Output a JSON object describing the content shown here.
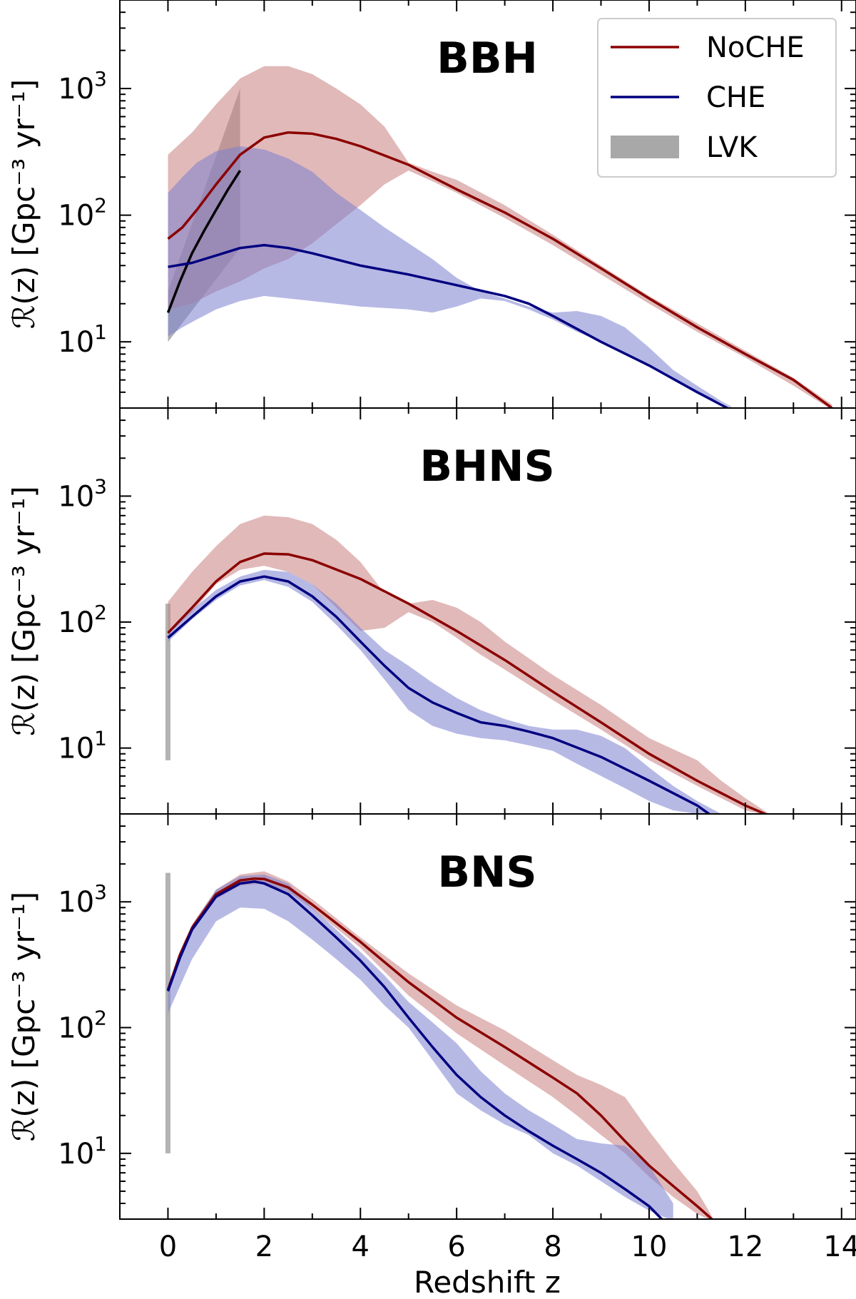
{
  "chart_data": {
    "type": "line",
    "xlabel": "Redshift z",
    "x_ticks": [
      "0",
      "2",
      "4",
      "6",
      "8",
      "10",
      "12",
      "14"
    ],
    "xlim": [
      -1,
      14.3
    ],
    "y_scale": "log",
    "ylim": [
      3,
      5000
    ],
    "ylabel": "ℛ(z) [Gpc⁻³ yr⁻¹]",
    "y_tick_base": "10",
    "y_tick_exponents": [
      "1",
      "2",
      "3"
    ],
    "legend": {
      "placement": "top-right",
      "entries": [
        {
          "label": "NoCHE",
          "color": "#8b0000",
          "kind": "line"
        },
        {
          "label": "CHE",
          "color": "#000080",
          "kind": "line"
        },
        {
          "label": "LVK",
          "color": "#a8a8a8",
          "kind": "band"
        }
      ]
    },
    "colors": {
      "noche_line": "#8b0000",
      "noche_band": "#c88080",
      "che_line": "#000080",
      "che_band": "#7b7fd0",
      "lvk": "#999999"
    },
    "panels": [
      {
        "title": "BBH",
        "series": [
          {
            "name": "NoCHE",
            "x": [
              0,
              0.3,
              0.6,
              1.0,
              1.5,
              2.0,
              2.5,
              3.0,
              3.5,
              4.0,
              5.0,
              6.0,
              7.0,
              8.0,
              9.0,
              10.0,
              11.0,
              12.0,
              13.0,
              13.8
            ],
            "y": [
              65,
              80,
              110,
              175,
              300,
              410,
              450,
              440,
              400,
              350,
              250,
              160,
              105,
              65,
              38,
              22,
              13,
              8,
              5,
              3
            ],
            "band_x": [
              0,
              0.5,
              1.0,
              1.5,
              2.0,
              2.5,
              3.0,
              3.5,
              4.0,
              4.5,
              5.0,
              5.5,
              6.0,
              7.0,
              8.0,
              9.0,
              10.0,
              11.0,
              12.0,
              13.0,
              13.8
            ],
            "band_low": [
              18,
              20,
              25,
              30,
              38,
              45,
              60,
              85,
              120,
              175,
              225,
              185,
              150,
              95,
              58,
              34,
              20,
              12,
              7.5,
              4.5,
              2.9
            ],
            "band_high": [
              300,
              450,
              750,
              1200,
              1500,
              1500,
              1300,
              1000,
              750,
              500,
              260,
              220,
              190,
              120,
              70,
              40,
              23,
              14,
              8.5,
              5.2,
              3.2
            ]
          },
          {
            "name": "CHE",
            "x": [
              0,
              0.5,
              1.0,
              1.5,
              2.0,
              2.5,
              3.0,
              4.0,
              5.0,
              6.0,
              7.0,
              7.5,
              8.0,
              9.0,
              10.0,
              11.0,
              11.7
            ],
            "y": [
              39,
              42,
              48,
              55,
              58,
              55,
              50,
              40,
              34,
              28,
              23,
              20,
              16,
              10,
              6.5,
              4,
              2.9
            ],
            "band_x": [
              0,
              0.3,
              0.6,
              1.0,
              1.5,
              2.0,
              2.5,
              3.0,
              3.5,
              4.0,
              4.5,
              5.0,
              5.5,
              6.0,
              6.5,
              7.0,
              7.5,
              8.0,
              8.5,
              9.0,
              9.5,
              10.0,
              10.5,
              11.0,
              11.5,
              11.7
            ],
            "band_low": [
              11,
              13,
              15,
              18,
              21,
              23,
              22,
              21,
              20,
              19,
              18.5,
              18,
              17,
              19,
              22,
              21,
              18,
              15,
              12,
              10,
              8,
              6.5,
              5,
              4,
              3.3,
              3
            ],
            "band_high": [
              150,
              200,
              260,
              320,
              350,
              330,
              280,
              220,
              150,
              110,
              80,
              60,
              45,
              32,
              25,
              22,
              19,
              17,
              17.5,
              16,
              13,
              9,
              6,
              4.5,
              3.4,
              3.1
            ]
          }
        ],
        "lvk": {
          "band_x": [
            0,
            1.5
          ],
          "band_low": [
            10,
            55
          ],
          "band_high": [
            25,
            1000
          ],
          "median_x": [
            0,
            0.25,
            0.5,
            0.75,
            1.0,
            1.25,
            1.5
          ],
          "median_y": [
            17,
            30,
            50,
            75,
            110,
            160,
            225
          ]
        }
      },
      {
        "title": "BHNS",
        "series": [
          {
            "name": "NoCHE",
            "x": [
              0,
              0.5,
              1.0,
              1.5,
              2.0,
              2.5,
              3.0,
              4.0,
              5.0,
              6.0,
              7.0,
              8.0,
              9.0,
              10.0,
              11.0,
              12.0,
              12.5
            ],
            "y": [
              82,
              130,
              210,
              300,
              350,
              345,
              310,
              220,
              140,
              85,
              50,
              28,
              16,
              9,
              5.5,
              3.5,
              2.9
            ],
            "band_x": [
              0,
              0.5,
              1.0,
              1.5,
              2.0,
              2.5,
              3.0,
              3.5,
              4.0,
              4.5,
              5.0,
              5.5,
              6.0,
              6.5,
              7.0,
              8.0,
              9.0,
              10.0,
              11.0,
              11.5,
              12.0,
              12.5
            ],
            "band_low": [
              80,
              120,
              200,
              260,
              280,
              250,
              200,
              130,
              85,
              90,
              120,
              100,
              75,
              55,
              42,
              24,
              14,
              8,
              5,
              4,
              3.2,
              2.9
            ],
            "band_high": [
              145,
              250,
              400,
              600,
              700,
              680,
              600,
              450,
              300,
              170,
              140,
              150,
              130,
              100,
              70,
              38,
              22,
              12,
              8,
              5.5,
              4,
              3
            ]
          },
          {
            "name": "CHE",
            "x": [
              0,
              0.5,
              1.0,
              1.5,
              2.0,
              2.5,
              3.0,
              3.5,
              4.0,
              4.5,
              5.0,
              5.5,
              6.0,
              6.5,
              7.0,
              7.5,
              8.0,
              9.0,
              10.0,
              11.0,
              11.3
            ],
            "y": [
              75,
              110,
              160,
              210,
              230,
              210,
              160,
              110,
              70,
              45,
              30,
              23,
              19,
              16,
              15,
              13.5,
              12,
              8.5,
              5.5,
              3.5,
              2.9
            ],
            "band_x": [
              0,
              0.5,
              1.0,
              1.5,
              2.0,
              2.5,
              3.0,
              3.5,
              4.0,
              4.5,
              5.0,
              5.5,
              6.0,
              6.5,
              7.0,
              7.5,
              8.0,
              8.5,
              9.0,
              9.5,
              10.0,
              10.5,
              11.0,
              11.5
            ],
            "band_low": [
              70,
              105,
              150,
              195,
              215,
              190,
              145,
              95,
              60,
              35,
              20,
              15,
              13,
              12,
              11.5,
              10.5,
              9.5,
              7.5,
              6,
              4.8,
              3.8,
              3.2,
              3,
              2.9
            ],
            "band_high": [
              80,
              125,
              180,
              230,
              260,
              250,
              200,
              140,
              90,
              60,
              45,
              33,
              25,
              20,
              17,
              15,
              14,
              14,
              12.5,
              10,
              7,
              5,
              3.8,
              3
            ]
          }
        ],
        "lvk": {
          "band_x": [
            0,
            0.1
          ],
          "band_low": [
            8,
            8
          ],
          "band_high": [
            140,
            140
          ]
        }
      },
      {
        "title": "BNS",
        "series": [
          {
            "name": "NoCHE",
            "x": [
              0,
              0.25,
              0.5,
              1.0,
              1.5,
              1.8,
              2.0,
              2.5,
              3.0,
              4.0,
              5.0,
              6.0,
              7.0,
              8.0,
              8.5,
              9.0,
              9.5,
              10.0,
              10.5,
              11.0,
              11.35
            ],
            "y": [
              200,
              380,
              620,
              1150,
              1480,
              1530,
              1520,
              1300,
              950,
              480,
              230,
              120,
              70,
              40,
              30,
              20,
              12.5,
              8,
              5.5,
              3.8,
              2.9
            ],
            "band_x": [
              0,
              0.5,
              1.0,
              1.5,
              2.0,
              2.5,
              3.0,
              4.0,
              5.0,
              6.0,
              7.0,
              8.0,
              8.5,
              9.0,
              9.5,
              10.0,
              10.5,
              11.0,
              11.3
            ],
            "band_low": [
              190,
              580,
              1050,
              1350,
              1400,
              1200,
              880,
              430,
              180,
              90,
              50,
              28,
              20,
              14,
              10,
              6.5,
              4.5,
              3.3,
              2.9
            ],
            "band_high": [
              210,
              660,
              1250,
              1650,
              1750,
              1450,
              1050,
              520,
              270,
              150,
              95,
              55,
              42,
              35,
              28,
              15,
              8.5,
              5,
              3.2
            ]
          },
          {
            "name": "CHE",
            "x": [
              0,
              0.25,
              0.5,
              1.0,
              1.5,
              1.8,
              2.0,
              2.5,
              3.0,
              3.5,
              4.0,
              4.5,
              5.0,
              5.5,
              6.0,
              6.5,
              7.0,
              7.5,
              8.0,
              8.5,
              9.0,
              9.5,
              10.0,
              10.3
            ],
            "y": [
              195,
              360,
              600,
              1100,
              1400,
              1450,
              1400,
              1150,
              780,
              520,
              340,
              210,
              120,
              70,
              42,
              28,
              20,
              15,
              11.5,
              9,
              7,
              5.2,
              3.8,
              2.9
            ],
            "band_x": [
              0,
              0.5,
              1.0,
              1.5,
              2.0,
              2.5,
              3.0,
              3.5,
              4.0,
              4.5,
              5.0,
              5.5,
              6.0,
              6.5,
              7.0,
              7.5,
              8.0,
              8.5,
              9.0,
              9.5,
              10.0,
              10.5
            ],
            "band_low": [
              130,
              350,
              700,
              900,
              880,
              700,
              500,
              350,
              240,
              150,
              100,
              55,
              30,
              22,
              17,
              14,
              10,
              8,
              6,
              4.5,
              3.5,
              2.9
            ],
            "band_high": [
              220,
              650,
              1250,
              1600,
              1650,
              1400,
              900,
              600,
              400,
              260,
              160,
              110,
              75,
              45,
              30,
              22,
              17,
              13,
              12,
              11.5,
              8,
              4
            ]
          }
        ],
        "lvk": {
          "band_x": [
            0,
            0.1
          ],
          "band_low": [
            10,
            10
          ],
          "band_high": [
            1700,
            1700
          ]
        }
      }
    ]
  }
}
